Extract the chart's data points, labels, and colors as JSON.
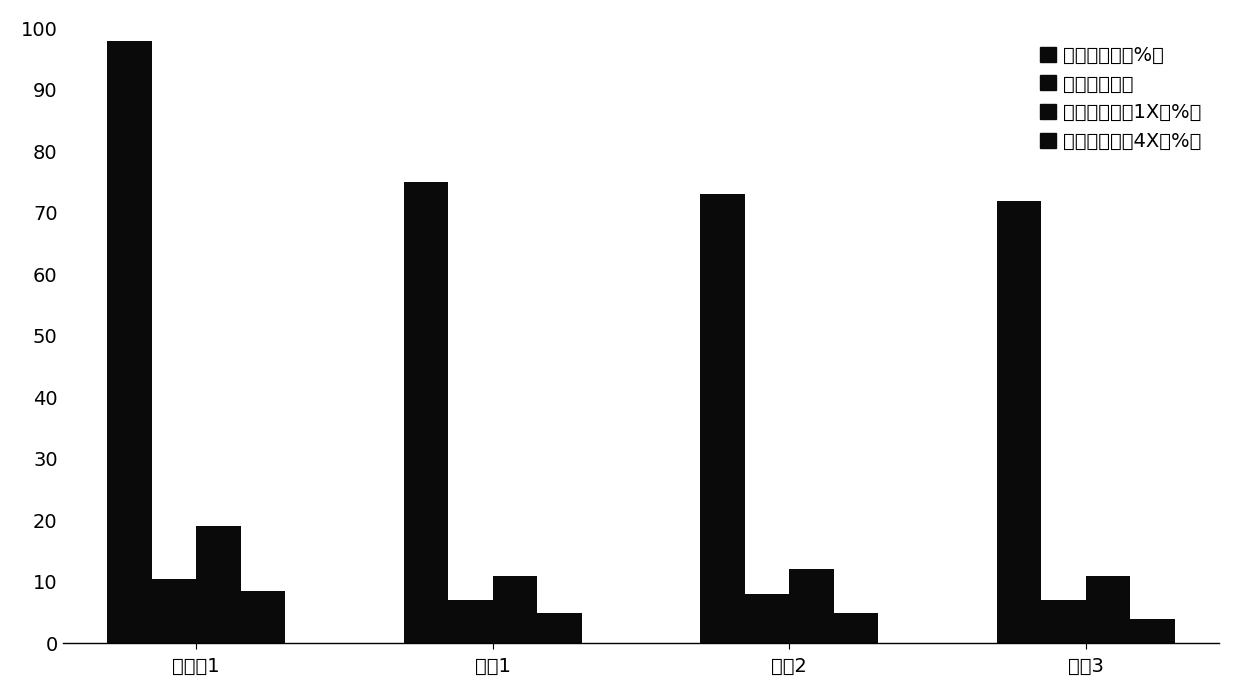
{
  "categories": [
    "实施夃1",
    "对比1",
    "对比2",
    "对比3"
  ],
  "series": [
    {
      "name": "平均比对率（%）",
      "values": [
        98,
        75,
        73,
        72
      ],
      "color": "#0a0a0a"
    },
    {
      "name": "平均测序深度",
      "values": [
        10.5,
        7,
        8,
        7
      ],
      "color": "#0a0a0a"
    },
    {
      "name": "平均个体覆盖1X（%）",
      "values": [
        19,
        11,
        12,
        11
      ],
      "color": "#0a0a0a"
    },
    {
      "name": "平均个体覆盖4X（%）",
      "values": [
        8.5,
        5,
        5,
        4
      ],
      "color": "#0a0a0a"
    }
  ],
  "ylim": [
    0,
    100
  ],
  "yticks": [
    0,
    10,
    20,
    30,
    40,
    50,
    60,
    70,
    80,
    90,
    100
  ],
  "bar_width": 0.15,
  "background_color": "#ffffff",
  "legend_fontsize": 14,
  "tick_fontsize": 14
}
